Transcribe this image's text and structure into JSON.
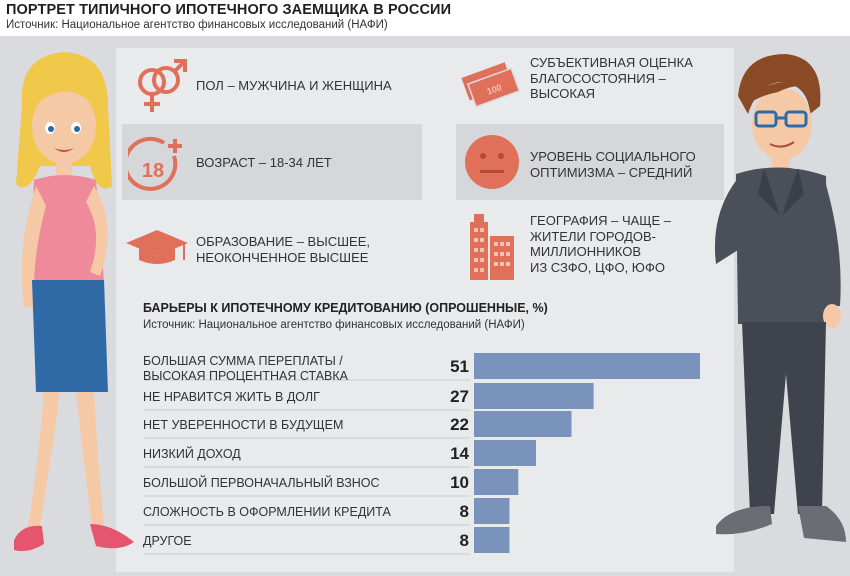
{
  "header": {
    "title": "ПОРТРЕТ ТИПИЧНОГО ИПОТЕЧНОГО ЗАЕМЩИКА В РОССИИ",
    "source": "Источник: Национальное агентство финансовых исследований (НАФИ)"
  },
  "facts": {
    "gender": "ПОЛ – МУЖЧИНА И ЖЕНЩИНА",
    "age_line": "ВОЗРАСТ – 18-34 ЛЕТ",
    "age_badge": "18+",
    "education_1": "ОБРАЗОВАНИЕ – ВЫСШЕЕ,",
    "education_2": "НЕОКОНЧЕННОЕ ВЫСШЕЕ",
    "wellbeing_1": "СУБЪЕКТИВНАЯ ОЦЕНКА",
    "wellbeing_2": "БЛАГОСОСТОЯНИЯ –",
    "wellbeing_3": "ВЫСОКАЯ",
    "optimism_1": "УРОВЕНЬ СОЦИАЛЬНОГО",
    "optimism_2": "ОПТИМИЗМА – СРЕДНИЙ",
    "geo_1": "ГЕОГРАФИЯ – ЧАЩЕ –",
    "geo_2": "ЖИТЕЛИ ГОРОДОВ-",
    "geo_3": "МИЛЛИОННИКОВ",
    "geo_4": "ИЗ СЗФО, ЦФО, ЮФО"
  },
  "barriers": {
    "title": "БАРЬЕРЫ К ИПОТЕЧНОМУ КРЕДИТОВАНИЮ (ОПРОШЕННЫЕ, %)",
    "source": "Источник: Национальное агентство финансовых исследований (НАФИ)"
  },
  "colors": {
    "bar": "#7a93bd",
    "bar_edge": "#6a83ad",
    "accent": "#e0705a",
    "panel": "#e9eaec",
    "card": "#d5d7da"
  },
  "icons": [
    "gender-icon",
    "age-18-plus-icon",
    "graduation-cap-icon",
    "money-icon",
    "neutral-face-icon",
    "city-buildings-icon"
  ],
  "chart_data": {
    "type": "bar",
    "orientation": "horizontal",
    "title": "БАРЬЕРЫ К ИПОТЕЧНОМУ КРЕДИТОВАНИЮ (ОПРОШЕННЫЕ, %)",
    "categories": [
      [
        "БОЛЬШАЯ СУММА ПЕРЕПЛАТЫ /",
        "ВЫСОКАЯ ПРОЦЕНТНАЯ СТАВКА"
      ],
      [
        "НЕ НРАВИТСЯ ЖИТЬ В ДОЛГ"
      ],
      [
        "НЕТ УВЕРЕННОСТИ В БУДУЩЕМ"
      ],
      [
        "НИЗКИЙ ДОХОД"
      ],
      [
        "БОЛЬШОЙ ПЕРВОНАЧАЛЬНЫЙ ВЗНОС"
      ],
      [
        "СЛОЖНОСТЬ В ОФОРМЛЕНИИ КРЕДИТА"
      ],
      [
        "ДРУГОЕ"
      ]
    ],
    "values": [
      51,
      27,
      22,
      14,
      10,
      8,
      8
    ],
    "xlim": [
      0,
      51
    ],
    "grid": false,
    "legend": "none"
  }
}
